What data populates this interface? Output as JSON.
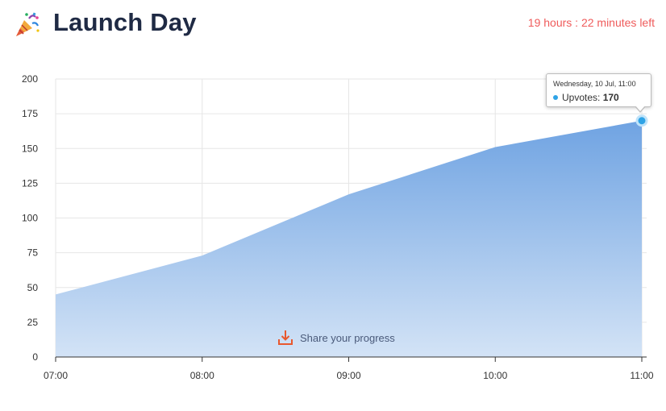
{
  "header": {
    "title": "Launch Day",
    "icon": "party-popper-icon",
    "time_left": "19 hours : 22 minutes left"
  },
  "colors": {
    "area_top": "#6fa3e2",
    "area_bottom": "#d3e3f6",
    "point": "#2fa3e6",
    "accent_red": "#ef5b5b",
    "share_icon": "#e8582e"
  },
  "chart_data": {
    "type": "area",
    "title": "",
    "xlabel": "",
    "ylabel": "",
    "x": [
      "07:00",
      "08:00",
      "09:00",
      "10:00",
      "11:00"
    ],
    "series": [
      {
        "values": [
          45,
          73,
          117,
          151,
          170
        ]
      }
    ],
    "ylim": [
      0,
      200
    ],
    "yticks": [
      0,
      25,
      50,
      75,
      100,
      125,
      150,
      175,
      200
    ],
    "grid": true,
    "legend": "none",
    "highlighted_index": 4
  },
  "tooltip": {
    "date": "Wednesday, 10 Jul, 11:00",
    "label": "Upvotes: ",
    "value": "170"
  },
  "share": {
    "label": "Share your progress",
    "icon": "download-icon"
  }
}
